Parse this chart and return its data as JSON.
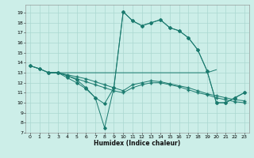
{
  "xlabel": "Humidex (Indice chaleur)",
  "background_color": "#cceee8",
  "grid_color": "#aad8d0",
  "line_color": "#1a7a6e",
  "xlim": [
    -0.5,
    23.5
  ],
  "ylim": [
    7,
    19.8
  ],
  "yticks": [
    7,
    8,
    9,
    10,
    11,
    12,
    13,
    14,
    15,
    16,
    17,
    18,
    19
  ],
  "xticks": [
    0,
    1,
    2,
    3,
    4,
    5,
    6,
    7,
    8,
    9,
    10,
    11,
    12,
    13,
    14,
    15,
    16,
    17,
    18,
    19,
    20,
    21,
    22,
    23
  ],
  "series_big_x": [
    0,
    1,
    2,
    3,
    4,
    5,
    6,
    7,
    8,
    9,
    10,
    11,
    12,
    13,
    14,
    15,
    16,
    17,
    18,
    19,
    20,
    21,
    22,
    23
  ],
  "series_big_y": [
    13.7,
    13.4,
    13.0,
    13.0,
    12.5,
    12.0,
    11.4,
    10.5,
    7.5,
    11.5,
    19.1,
    18.2,
    17.7,
    18.0,
    18.3,
    17.5,
    17.2,
    16.5,
    15.3,
    13.2,
    10.0,
    10.0,
    10.5,
    11.0
  ],
  "series_flat_x": [
    0,
    1,
    2,
    3,
    4,
    5,
    6,
    7,
    8,
    9,
    10,
    11,
    12,
    13,
    14,
    15,
    16,
    17,
    18,
    19,
    20
  ],
  "series_flat_y": [
    13.7,
    13.4,
    13.0,
    13.0,
    13.0,
    13.0,
    13.0,
    13.0,
    13.0,
    13.0,
    13.0,
    13.0,
    13.0,
    13.0,
    13.0,
    13.0,
    13.0,
    13.0,
    13.0,
    13.0,
    13.3
  ],
  "series_mid1_x": [
    2,
    3,
    4,
    5,
    6,
    7,
    8,
    9,
    10,
    11,
    12,
    13,
    14,
    15,
    16,
    17,
    18,
    19,
    20,
    21,
    22,
    23
  ],
  "series_mid1_y": [
    13.0,
    13.0,
    12.8,
    12.6,
    12.4,
    12.1,
    11.8,
    11.5,
    11.2,
    11.8,
    12.0,
    12.2,
    12.1,
    11.9,
    11.7,
    11.5,
    11.2,
    10.9,
    10.7,
    10.5,
    10.3,
    10.2
  ],
  "series_mid2_x": [
    2,
    3,
    4,
    5,
    6,
    7,
    8,
    9,
    10,
    11,
    12,
    13,
    14,
    15,
    16,
    17,
    18,
    19,
    20,
    21,
    22,
    23
  ],
  "series_mid2_y": [
    13.0,
    13.0,
    12.7,
    12.4,
    12.1,
    11.8,
    11.5,
    11.2,
    11.0,
    11.5,
    11.8,
    12.0,
    12.0,
    11.8,
    11.6,
    11.3,
    11.0,
    10.8,
    10.5,
    10.3,
    10.1,
    10.0
  ],
  "series_nodip_x": [
    0,
    1,
    2,
    3,
    4,
    5,
    6,
    7,
    8,
    9,
    10,
    11,
    12,
    13,
    14,
    15,
    16,
    17,
    18,
    19,
    20,
    21,
    22,
    23
  ],
  "series_nodip_y": [
    13.7,
    13.4,
    13.0,
    13.0,
    12.7,
    12.3,
    11.5,
    10.5,
    9.9,
    11.5,
    19.1,
    18.2,
    17.7,
    18.0,
    18.3,
    17.5,
    17.2,
    16.5,
    15.3,
    13.2,
    10.0,
    10.0,
    10.5,
    11.0
  ]
}
